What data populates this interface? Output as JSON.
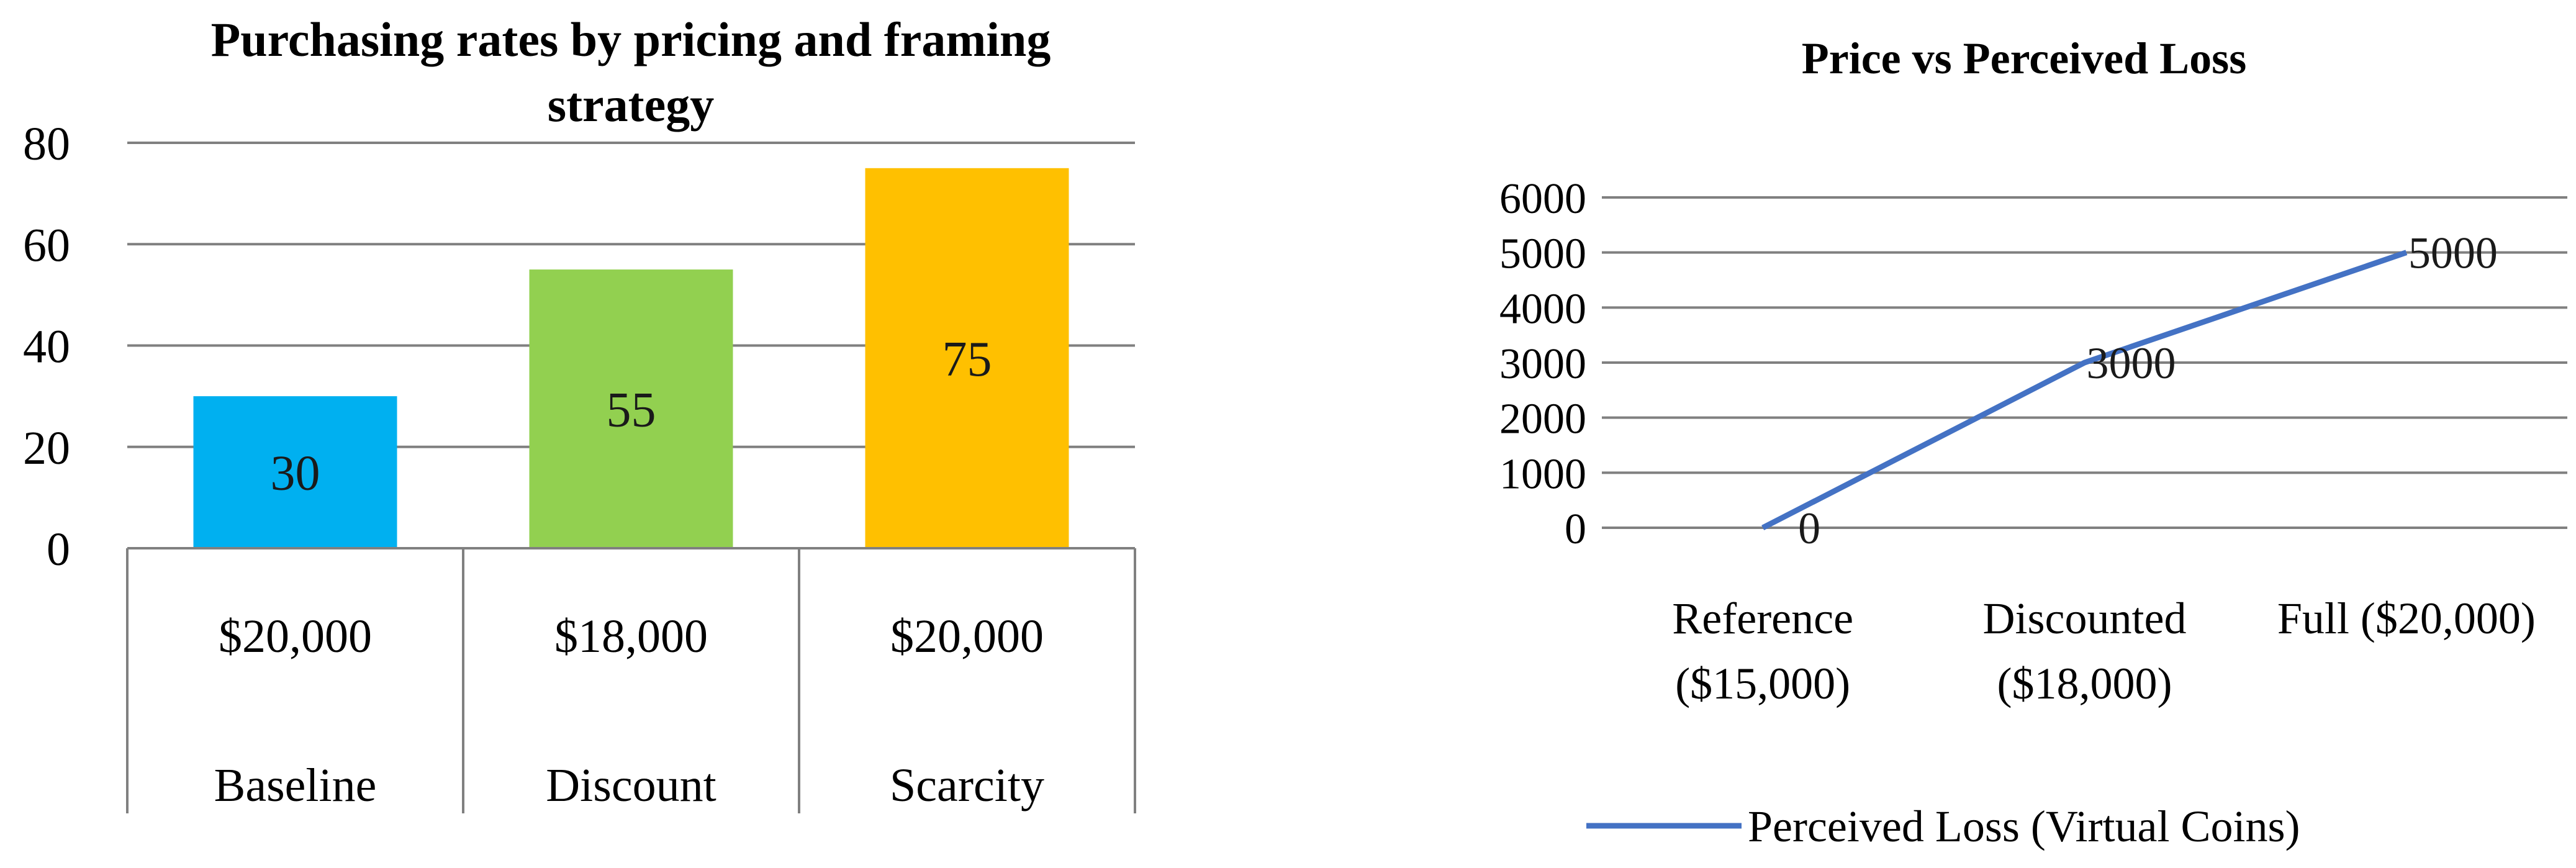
{
  "chart_data": [
    {
      "type": "bar",
      "title": "Purchasing rates by pricing and framing strategy",
      "title_lines": [
        "Purchasing rates by pricing and framing",
        "strategy"
      ],
      "categories": [
        [
          "$20,000",
          "Baseline"
        ],
        [
          "$18,000",
          "Discount"
        ],
        [
          "$20,000",
          "Scarcity"
        ]
      ],
      "values": [
        30,
        55,
        75
      ],
      "data_labels": [
        "30",
        "55",
        "75"
      ],
      "colors": [
        "#00b0f0",
        "#92d050",
        "#ffc000"
      ],
      "yticks": [
        0,
        20,
        40,
        60,
        80
      ],
      "ytick_labels": [
        "0",
        "20",
        "40",
        "60",
        "80"
      ],
      "ylim": [
        0,
        80
      ],
      "grid": true,
      "legend": "none"
    },
    {
      "type": "line",
      "title": "Price vs Perceived Loss",
      "categories": [
        [
          "Reference",
          "($15,000)"
        ],
        [
          "Discounted",
          "($18,000)"
        ],
        [
          "Full ($20,000)"
        ]
      ],
      "series": [
        {
          "name": "Perceived Loss (Virtual Coins)",
          "values": [
            0,
            3000,
            5000
          ],
          "color": "#4472c4"
        }
      ],
      "data_labels": [
        "0",
        "3000",
        "5000"
      ],
      "yticks": [
        0,
        1000,
        2000,
        3000,
        4000,
        5000,
        6000
      ],
      "ytick_labels": [
        "0",
        "1000",
        "2000",
        "3000",
        "4000",
        "5000",
        "6000"
      ],
      "ylim": [
        0,
        6000
      ],
      "grid": true,
      "legend": "bottom"
    }
  ]
}
